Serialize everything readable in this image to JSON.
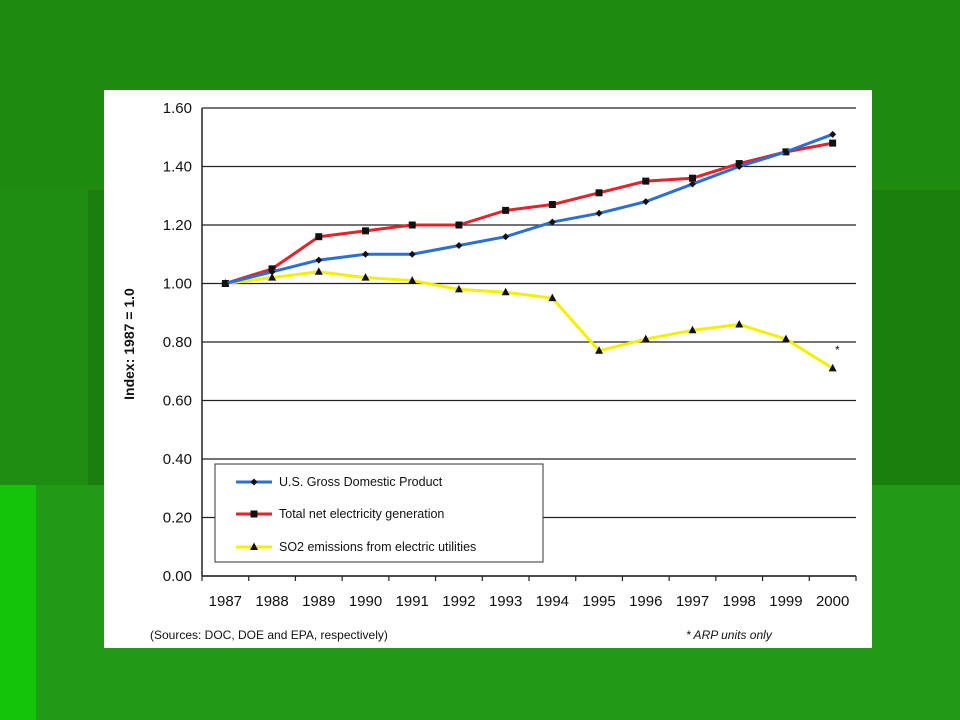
{
  "colors": {
    "slide_background": "#1f8d12",
    "band_dark": "#187a0c",
    "band_light": "#2ea61e",
    "gdp": "#2b6fd6",
    "electricity": "#e8202a",
    "so2": "#f5f000",
    "marker": "#111111"
  },
  "chart_data": {
    "type": "line",
    "ylabel": "Index: 1987 = 1.0",
    "ylim": [
      0,
      1.6
    ],
    "yticks": [
      "0.00",
      "0.20",
      "0.40",
      "0.60",
      "0.80",
      "1.00",
      "1.20",
      "1.40",
      "1.60"
    ],
    "categories": [
      "1987",
      "1988",
      "1989",
      "1990",
      "1991",
      "1992",
      "1993",
      "1994",
      "1995",
      "1996",
      "1997",
      "1998",
      "1999",
      "2000"
    ],
    "grid": "horizontal",
    "legend_position": "bottom-left",
    "series": [
      {
        "name": "U.S. Gross Domestic Product",
        "marker": "diamond",
        "values": [
          1.0,
          1.04,
          1.08,
          1.1,
          1.1,
          1.13,
          1.16,
          1.21,
          1.24,
          1.28,
          1.34,
          1.4,
          1.45,
          1.51
        ]
      },
      {
        "name": "Total net electricity generation",
        "marker": "square",
        "values": [
          1.0,
          1.05,
          1.16,
          1.18,
          1.2,
          1.2,
          1.25,
          1.27,
          1.31,
          1.35,
          1.36,
          1.41,
          1.45,
          1.48
        ]
      },
      {
        "name": "SO2 emissions from electric utilities",
        "marker": "triangle",
        "values": [
          1.0,
          1.02,
          1.04,
          1.02,
          1.01,
          0.98,
          0.97,
          0.95,
          0.77,
          0.81,
          0.84,
          0.86,
          0.81,
          0.71
        ]
      }
    ],
    "annotation": "*",
    "footnote_sources": "(Sources: DOC, DOE and EPA, respectively)",
    "footnote_note": "* ARP units only"
  }
}
